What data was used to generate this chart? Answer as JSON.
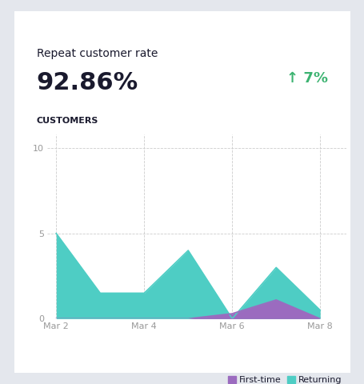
{
  "title": "Repeat customer rate",
  "rate": "92.86%",
  "change": "↑ 7%",
  "change_color": "#3cb371",
  "section_label": "CUSTOMERS",
  "bg_outer": "#e4e7ed",
  "bg_card": "#ffffff",
  "returning_color": "#4ecdc4",
  "firsttime_color": "#9b6bbf",
  "x_dates": [
    2,
    3,
    4,
    5,
    6,
    7,
    8
  ],
  "returning_y": [
    5.0,
    1.5,
    1.5,
    4.0,
    0.0,
    3.0,
    0.5
  ],
  "firsttime_y": [
    0.0,
    0.0,
    0.0,
    0.0,
    0.3,
    1.1,
    0.0
  ],
  "xtick_positions": [
    2,
    4,
    6,
    8
  ],
  "xtick_labels": [
    "Mar 2",
    "Mar 4",
    "Mar 6",
    "Mar 8"
  ],
  "ytick_positions": [
    0,
    5,
    10
  ],
  "ylim": [
    0,
    10.8
  ],
  "xlim": [
    1.8,
    8.6
  ],
  "grid_color": "#cccccc",
  "axis_label_color": "#999999",
  "text_color": "#1a1a2e",
  "rate_fontsize": 22,
  "title_fontsize": 10,
  "section_fontsize": 8,
  "tick_fontsize": 8,
  "legend_fontsize": 8
}
